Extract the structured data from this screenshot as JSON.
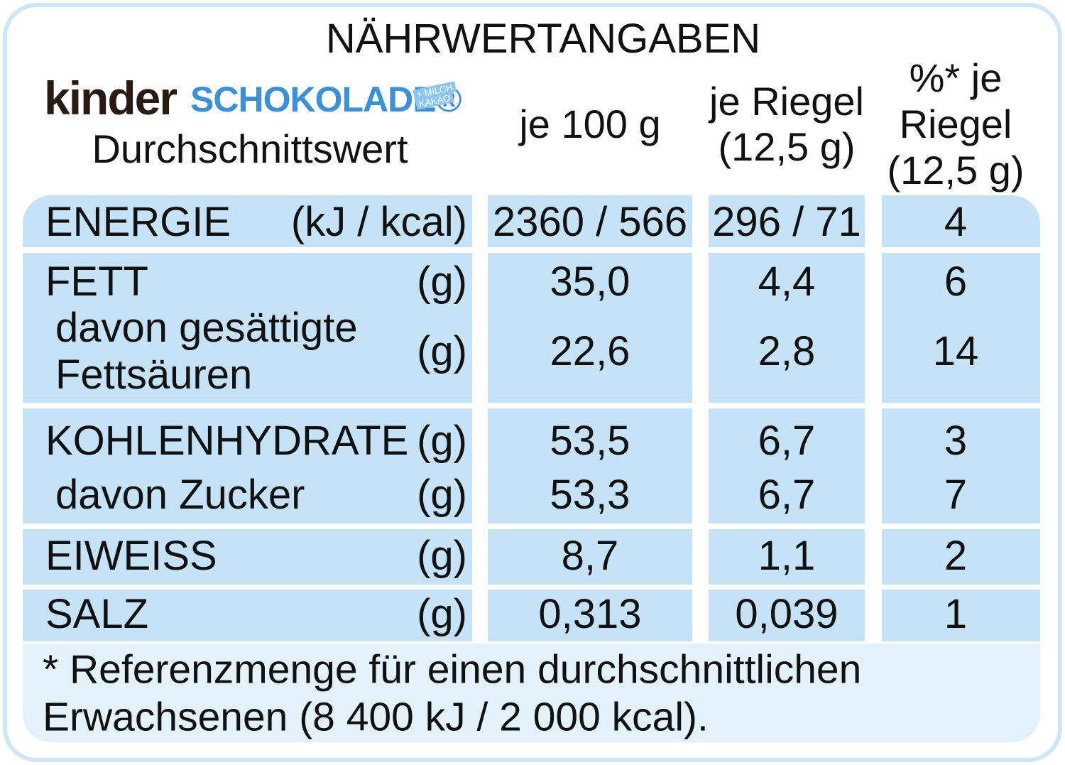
{
  "title": "NÄHRWERTANGABEN",
  "brand": {
    "name": "kinder",
    "product": "SCHOKOLADE®",
    "badge": [
      "+ MILCH",
      "KAKAO"
    ]
  },
  "header": {
    "label": "Durchschnittswert",
    "columns": [
      [
        "je 100 g"
      ],
      [
        "je Riegel",
        "(12,5 g)"
      ],
      [
        "%* je",
        "Riegel",
        "(12,5 g)"
      ]
    ]
  },
  "rows": [
    {
      "label": [
        "ENERGIE"
      ],
      "unit": "(kJ / kcal)",
      "values": [
        "2360 / 566",
        "296 / 71",
        "4"
      ]
    },
    {
      "label": [
        "FETT"
      ],
      "unit": "(g)",
      "values": [
        "35,0",
        "4,4",
        "6"
      ]
    },
    {
      "label": [
        "davon gesättigte",
        "Fettsäuren"
      ],
      "unit": "(g)",
      "values": [
        "22,6",
        "2,8",
        "14"
      ]
    },
    {
      "label": [
        "KOHLENHYDRATE"
      ],
      "unit": "(g)",
      "values": [
        "53,5",
        "6,7",
        "3"
      ]
    },
    {
      "label": [
        "davon Zucker"
      ],
      "unit": "(g)",
      "values": [
        "53,3",
        "6,7",
        "7"
      ]
    },
    {
      "label": [
        "EIWEISS"
      ],
      "unit": "(g)",
      "values": [
        "8,7",
        "1,1",
        "2"
      ]
    },
    {
      "label": [
        "SALZ"
      ],
      "unit": "(g)",
      "values": [
        "0,313",
        "0,039",
        "1"
      ]
    }
  ],
  "footnote": [
    "* Referenzmenge für einen durchschnittlichen",
    "Erwachsenen (8 400 kJ / 2 000 kcal)."
  ]
}
